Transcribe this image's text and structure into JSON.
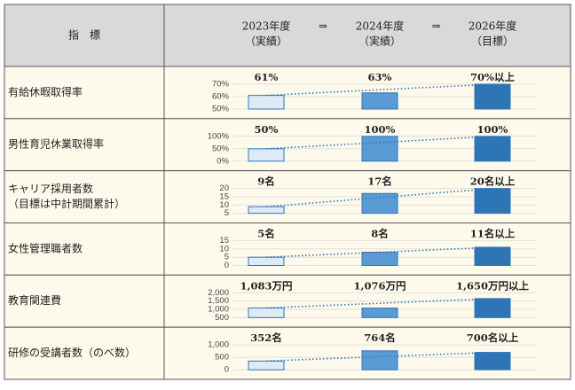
{
  "header": {
    "indicator": "指　標",
    "columns": [
      [
        "2023年度",
        "（実績）"
      ],
      [
        "2024年度",
        "（実績）"
      ],
      [
        "2026年度",
        "（目標）"
      ]
    ],
    "arrows": [
      "⇒",
      "⇒"
    ]
  },
  "colors": [
    "#ddebf7",
    "#5b9bd5",
    "#2e75b6"
  ],
  "rows": [
    {
      "label": [
        "有給休暇取得率"
      ],
      "chart": {
        "type": "bar",
        "values": [
          61,
          63,
          70
        ],
        "value_labels": [
          "61%",
          "63%",
          "70%以上"
        ],
        "ylim": [
          50,
          70
        ],
        "yticks": [
          {
            "value": 50,
            "label": "50%"
          },
          {
            "value": 60,
            "label": "60%"
          },
          {
            "value": 70,
            "label": "70%"
          }
        ]
      }
    },
    {
      "label": [
        "男性育児休業取得率"
      ],
      "chart": {
        "type": "bar",
        "values": [
          50,
          100,
          100
        ],
        "value_labels": [
          "50%",
          "100%",
          "100%"
        ],
        "ylim": [
          0,
          100
        ],
        "yticks": [
          {
            "value": 0,
            "label": "0%"
          },
          {
            "value": 50,
            "label": "50%"
          },
          {
            "value": 100,
            "label": "100%"
          }
        ]
      }
    },
    {
      "label": [
        "キャリア採用者数",
        "（目標は中計期間累計）"
      ],
      "chart": {
        "type": "bar",
        "values": [
          9,
          17,
          20
        ],
        "value_labels": [
          "9名",
          "17名",
          "20名以上"
        ],
        "ylim": [
          5,
          20
        ],
        "yticks": [
          5,
          10,
          15,
          20
        ]
      }
    },
    {
      "label": [
        "女性管理職者数"
      ],
      "chart": {
        "type": "bar",
        "values": [
          5,
          8,
          11
        ],
        "value_labels": [
          "5名",
          "8名",
          "11名以上"
        ],
        "ylim": [
          0,
          15
        ],
        "yticks": [
          0,
          5,
          10,
          15
        ]
      }
    },
    {
      "label": [
        "教育関連費"
      ],
      "chart": {
        "type": "bar",
        "values": [
          1083,
          1076,
          1650
        ],
        "value_labels": [
          "1,083万円",
          "1,076万円",
          "1,650万円以上"
        ],
        "ylim": [
          500,
          2000
        ],
        "yticks": [
          500,
          {
            "value": 1000,
            "label": "1,000"
          },
          {
            "value": 1500,
            "label": "1,500"
          },
          {
            "value": 2000,
            "label": "2,000"
          }
        ]
      }
    },
    {
      "label": [
        "研修の受講者数（のべ数）"
      ],
      "chart": {
        "type": "bar",
        "values": [
          352,
          764,
          700
        ],
        "value_labels": [
          "352名",
          "764名",
          "700名以上"
        ],
        "ylim": [
          0,
          1000
        ],
        "yticks": [
          0,
          500,
          {
            "value": 1000,
            "label": "1,000"
          }
        ]
      }
    }
  ]
}
